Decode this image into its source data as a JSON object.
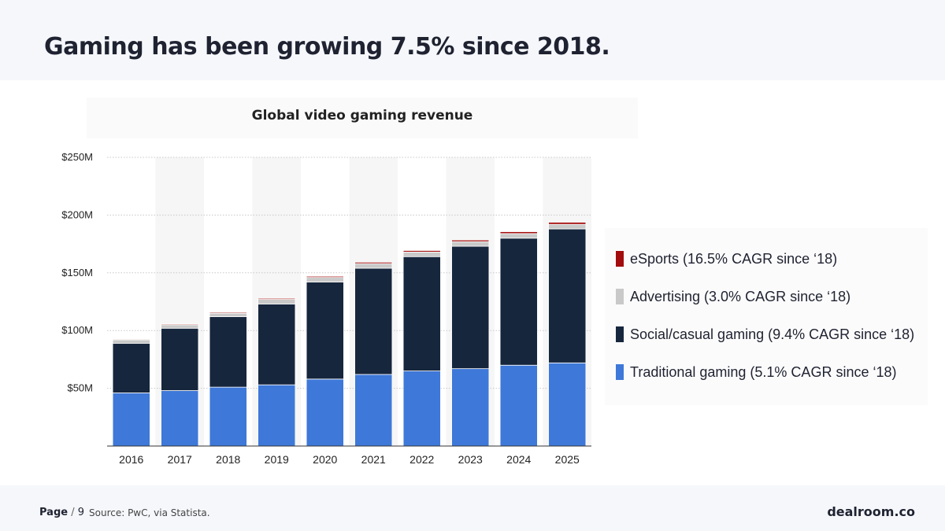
{
  "header": {
    "title": "Gaming has been growing 7.5% since 2018."
  },
  "footer": {
    "page_label": "Page",
    "page_sep": "/",
    "page_number": "9",
    "source": "Source: PwC, via Statista.",
    "brand": "dealroom.co"
  },
  "colors": {
    "traditional": "#3e78d8",
    "social": "#16263d",
    "advertising": "#c9c9c9",
    "esports": "#a30c0c"
  },
  "legend": [
    {
      "label": "eSports (16.5% CAGR since ‘18)",
      "color": "#a30c0c"
    },
    {
      "label": "Advertising (3.0% CAGR since ‘18)",
      "color": "#c9c9c9"
    },
    {
      "label": "Social/casual gaming (9.4% CAGR since ‘18)",
      "color": "#16263d"
    },
    {
      "label": "Traditional gaming (5.1% CAGR since ‘18)",
      "color": "#3e78d8"
    }
  ],
  "chart_data": {
    "type": "bar",
    "stacked": true,
    "title": "Global video gaming revenue",
    "xlabel": "",
    "ylabel": "",
    "ylim": [
      0,
      250
    ],
    "yticks": [
      50,
      100,
      150,
      200,
      250
    ],
    "ytick_labels": [
      "$50M",
      "$100M",
      "$150M",
      "$200M",
      "$250M"
    ],
    "categories": [
      "2016",
      "2017",
      "2018",
      "2019",
      "2020",
      "2021",
      "2022",
      "2023",
      "2024",
      "2025"
    ],
    "series": [
      {
        "name": "Traditional gaming",
        "color": "#3e78d8",
        "values": [
          46,
          48,
          51,
          53,
          58,
          62,
          65,
          67,
          70,
          72
        ]
      },
      {
        "name": "Social/casual gaming",
        "color": "#16263d",
        "values": [
          43,
          54,
          61,
          70,
          84,
          92,
          99,
          106,
          110,
          116
        ]
      },
      {
        "name": "Advertising",
        "color": "#c9c9c9",
        "values": [
          3,
          3,
          3,
          4,
          4,
          4,
          4,
          4,
          4,
          4
        ]
      },
      {
        "name": "eSports",
        "color": "#a30c0c",
        "values": [
          0.6,
          0.7,
          0.8,
          0.9,
          1.0,
          1.2,
          1.3,
          1.4,
          1.6,
          1.8
        ]
      }
    ],
    "grid": true
  }
}
